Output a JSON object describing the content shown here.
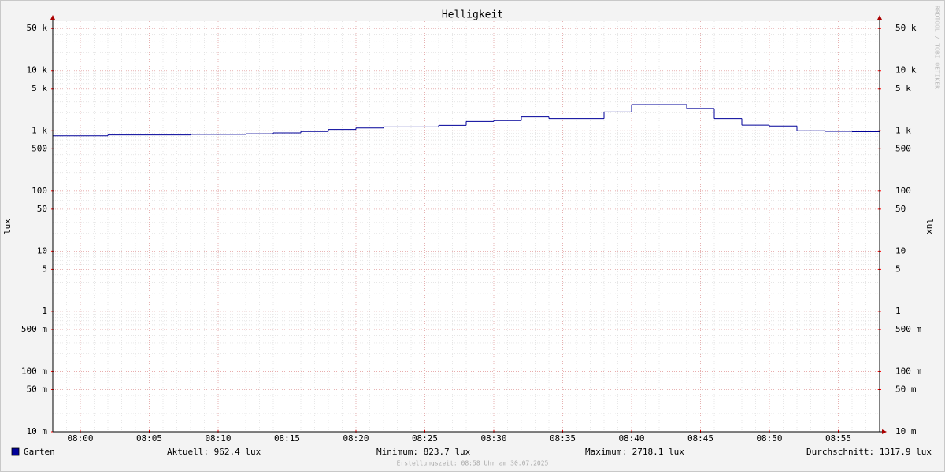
{
  "chart_data": {
    "type": "step-line",
    "title": "Helligkeit",
    "y_label": "lux",
    "log_y": true,
    "x": [
      "07:58",
      "08:02",
      "08:08",
      "08:12",
      "08:14",
      "08:16",
      "08:18",
      "08:20",
      "08:22",
      "08:26",
      "08:28",
      "08:30",
      "08:32",
      "08:34",
      "08:38",
      "08:40",
      "08:44",
      "08:46",
      "08:48",
      "08:50",
      "08:52",
      "08:54",
      "08:56"
    ],
    "series": [
      {
        "name": "Garten",
        "color": "#000099",
        "values": [
          823.7,
          850,
          870,
          890,
          920,
          970,
          1050,
          1110,
          1160,
          1230,
          1430,
          1480,
          1700,
          1600,
          2050,
          2718.1,
          2350,
          1600,
          1240,
          1200,
          1000,
          980,
          962.4
        ]
      }
    ],
    "xlim": [
      "07:58",
      "08:58"
    ],
    "xticks": [
      "08:00",
      "08:05",
      "08:10",
      "08:15",
      "08:20",
      "08:25",
      "08:30",
      "08:35",
      "08:40",
      "08:45",
      "08:50",
      "08:55"
    ],
    "ylim": [
      0.01,
      66000
    ],
    "yticks": [
      {
        "value": 0.01,
        "label": "10 m"
      },
      {
        "value": 0.05,
        "label": "50 m"
      },
      {
        "value": 0.1,
        "label": "100 m"
      },
      {
        "value": 0.5,
        "label": "500 m"
      },
      1,
      5,
      10,
      50,
      100,
      500,
      {
        "value": 1000,
        "label": "1 k"
      },
      {
        "value": 5000,
        "label": "5 k"
      },
      {
        "value": 10000,
        "label": "10 k"
      },
      {
        "value": 50000,
        "label": "50 k"
      }
    ],
    "grid": true,
    "stats": [
      "Aktuell: 962.4 lux",
      "Minimum: 823.7 lux",
      "Maximum: 2718.1 lux",
      "Durchschnitt: 1317.9 lux"
    ],
    "footer": "Erstellungszeit: 08:58 Uhr am 30.07.2025",
    "watermark": "RRDTOOL / TOBI OETIKER"
  }
}
